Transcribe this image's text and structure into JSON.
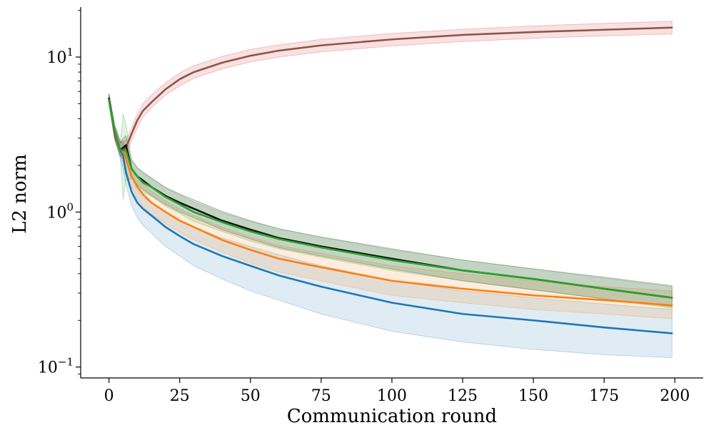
{
  "chart_data": {
    "type": "line",
    "title": "",
    "xlabel": "Communication round",
    "ylabel": "L2 norm",
    "yscale": "log",
    "xlim": [
      -10,
      210
    ],
    "ylim": [
      0.085,
      21
    ],
    "xticks": [
      {
        "value": 0,
        "label": "0"
      },
      {
        "value": 25,
        "label": "25"
      },
      {
        "value": 50,
        "label": "50"
      },
      {
        "value": 75,
        "label": "75"
      },
      {
        "value": 100,
        "label": "100"
      },
      {
        "value": 125,
        "label": "125"
      },
      {
        "value": 150,
        "label": "150"
      },
      {
        "value": 175,
        "label": "175"
      },
      {
        "value": 200,
        "label": "200"
      }
    ],
    "yticks": [
      {
        "value": 0.1,
        "base": "10",
        "exp": "−1"
      },
      {
        "value": 1,
        "base": "10",
        "exp": "0"
      },
      {
        "value": 10,
        "base": "10",
        "exp": "1"
      }
    ],
    "grid": false,
    "legend": "none",
    "series": [
      {
        "name": "brown",
        "color": "#8c564b",
        "band_color": "#d62728",
        "x": [
          0,
          2,
          4,
          6,
          8,
          10,
          12,
          15,
          20,
          25,
          30,
          40,
          50,
          60,
          75,
          100,
          125,
          150,
          175,
          199
        ],
        "y": [
          5.4,
          3.2,
          2.5,
          2.6,
          3.2,
          3.9,
          4.5,
          5.1,
          6.2,
          7.2,
          8.0,
          9.2,
          10.2,
          11.0,
          11.9,
          13.0,
          13.9,
          14.5,
          15.0,
          15.5
        ],
        "lower": [
          5.1,
          2.9,
          2.3,
          2.3,
          2.9,
          3.5,
          4.1,
          4.7,
          5.7,
          6.5,
          7.3,
          8.4,
          9.3,
          10.0,
          10.8,
          11.8,
          12.6,
          13.2,
          13.7,
          14.1
        ],
        "upper": [
          5.8,
          3.5,
          2.8,
          2.9,
          3.5,
          4.3,
          5.0,
          5.7,
          6.8,
          7.9,
          8.8,
          10.1,
          11.2,
          12.0,
          13.0,
          14.2,
          15.1,
          15.9,
          16.5,
          17.0
        ]
      },
      {
        "name": "blue",
        "color": "#1f77b4",
        "x": [
          0,
          2,
          4,
          5,
          6,
          8,
          10,
          12,
          15,
          20,
          25,
          30,
          40,
          50,
          60,
          75,
          100,
          125,
          150,
          175,
          199
        ],
        "y": [
          5.3,
          3.3,
          2.5,
          2.3,
          1.8,
          1.35,
          1.15,
          1.05,
          0.95,
          0.8,
          0.7,
          0.62,
          0.52,
          0.45,
          0.39,
          0.33,
          0.26,
          0.22,
          0.2,
          0.18,
          0.165
        ],
        "lower": [
          4.9,
          3.0,
          2.2,
          1.9,
          1.5,
          1.1,
          0.92,
          0.82,
          0.73,
          0.6,
          0.52,
          0.45,
          0.37,
          0.31,
          0.27,
          0.22,
          0.17,
          0.145,
          0.13,
          0.12,
          0.115
        ],
        "upper": [
          5.8,
          3.7,
          2.9,
          2.8,
          2.2,
          1.6,
          1.38,
          1.25,
          1.15,
          1.0,
          0.88,
          0.8,
          0.68,
          0.6,
          0.53,
          0.45,
          0.36,
          0.31,
          0.28,
          0.255,
          0.235
        ]
      },
      {
        "name": "orange",
        "color": "#ff7f0e",
        "x": [
          0,
          2,
          4,
          5,
          6,
          8,
          10,
          12,
          15,
          20,
          25,
          30,
          40,
          50,
          60,
          75,
          100,
          125,
          150,
          175,
          199
        ],
        "y": [
          5.3,
          3.3,
          2.5,
          2.5,
          2.2,
          1.7,
          1.45,
          1.3,
          1.15,
          1.0,
          0.88,
          0.8,
          0.66,
          0.57,
          0.5,
          0.44,
          0.36,
          0.32,
          0.29,
          0.27,
          0.25
        ],
        "lower": [
          5.0,
          3.0,
          2.3,
          2.1,
          1.9,
          1.45,
          1.22,
          1.08,
          0.96,
          0.84,
          0.74,
          0.66,
          0.55,
          0.47,
          0.41,
          0.36,
          0.29,
          0.26,
          0.235,
          0.22,
          0.205
        ],
        "upper": [
          5.7,
          3.6,
          2.8,
          2.9,
          2.5,
          1.95,
          1.7,
          1.52,
          1.36,
          1.18,
          1.04,
          0.95,
          0.8,
          0.69,
          0.61,
          0.54,
          0.45,
          0.4,
          0.36,
          0.33,
          0.31
        ]
      },
      {
        "name": "black",
        "color": "#111111",
        "x": [
          0,
          2,
          4,
          5,
          6,
          8,
          10,
          12,
          15,
          20,
          25,
          30,
          40,
          50,
          60,
          75,
          100,
          125,
          150,
          175,
          199
        ],
        "y": [
          5.4,
          3.3,
          2.5,
          2.6,
          2.7,
          1.9,
          1.7,
          1.6,
          1.45,
          1.27,
          1.15,
          1.05,
          0.88,
          0.77,
          0.68,
          0.6,
          0.5,
          0.42,
          0.37,
          0.32,
          0.28
        ],
        "lower": [
          5.1,
          3.0,
          2.3,
          2.2,
          2.3,
          1.7,
          1.5,
          1.4,
          1.28,
          1.12,
          1.0,
          0.92,
          0.77,
          0.67,
          0.59,
          0.52,
          0.43,
          0.36,
          0.315,
          0.275,
          0.245
        ],
        "upper": [
          5.8,
          3.6,
          2.8,
          3.0,
          3.1,
          2.15,
          1.93,
          1.82,
          1.65,
          1.44,
          1.31,
          1.2,
          1.01,
          0.88,
          0.78,
          0.69,
          0.58,
          0.49,
          0.43,
          0.38,
          0.335
        ]
      },
      {
        "name": "green",
        "color": "#2ca02c",
        "x": [
          0,
          2,
          4,
          5,
          6,
          8,
          10,
          12,
          15,
          20,
          25,
          30,
          40,
          50,
          60,
          75,
          100,
          125,
          150,
          175,
          199
        ],
        "y": [
          5.3,
          3.3,
          2.5,
          2.5,
          2.5,
          1.9,
          1.7,
          1.55,
          1.45,
          1.25,
          1.12,
          1.0,
          0.86,
          0.75,
          0.67,
          0.59,
          0.49,
          0.42,
          0.37,
          0.32,
          0.28
        ],
        "lower": [
          5.0,
          3.0,
          2.3,
          1.2,
          1.6,
          1.65,
          1.48,
          1.35,
          1.26,
          1.09,
          0.98,
          0.87,
          0.75,
          0.65,
          0.58,
          0.51,
          0.42,
          0.36,
          0.315,
          0.275,
          0.24
        ],
        "upper": [
          5.7,
          3.6,
          2.8,
          4.3,
          3.7,
          2.2,
          1.95,
          1.78,
          1.67,
          1.44,
          1.29,
          1.16,
          0.99,
          0.87,
          0.78,
          0.69,
          0.57,
          0.49,
          0.43,
          0.375,
          0.33
        ]
      }
    ]
  }
}
